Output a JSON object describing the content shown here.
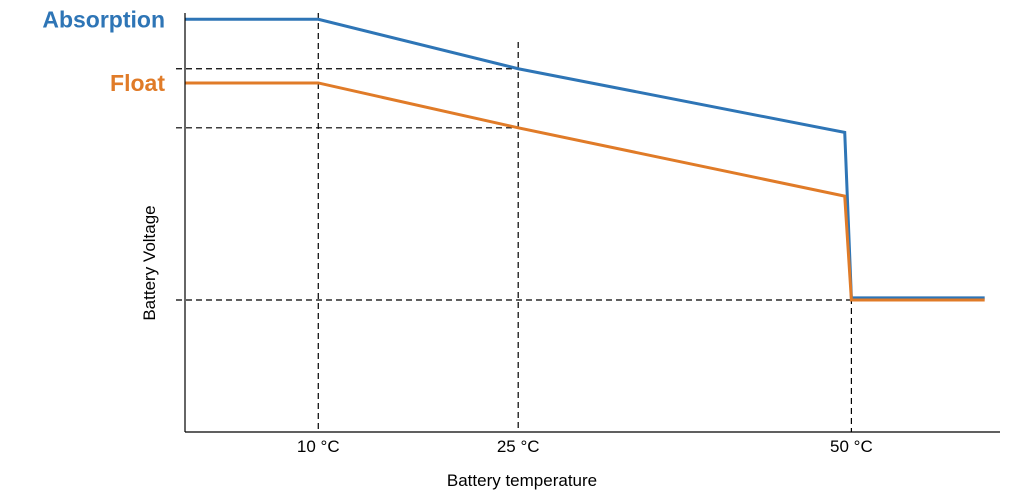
{
  "chart_data": {
    "type": "line",
    "xlabel": "Battery temperature",
    "ylabel": "Battery Voltage",
    "xlim": [
      0,
      61
    ],
    "ylim": [
      0,
      100
    ],
    "x_ticks": [
      {
        "value": 10,
        "label": "10 °C"
      },
      {
        "value": 25,
        "label": "25 °C"
      },
      {
        "value": 50,
        "label": "50 °C"
      }
    ],
    "reference_lines": {
      "vertical": [
        10,
        25,
        50
      ],
      "horizontal": [
        86.7,
        72.6,
        31.5
      ]
    },
    "series": [
      {
        "name": "Absorption",
        "color": "#2e75b6",
        "x": [
          0,
          10,
          25,
          49.5,
          50,
          60
        ],
        "y": [
          98.5,
          98.5,
          86.7,
          71.5,
          32.0,
          32.0
        ]
      },
      {
        "name": "Float",
        "color": "#e07b28",
        "x": [
          0,
          10,
          25,
          49.5,
          50,
          60
        ],
        "y": [
          83.3,
          83.3,
          72.6,
          56.3,
          31.5,
          31.5
        ]
      }
    ],
    "grid": false,
    "legend": "series names printed at left end of lines"
  }
}
